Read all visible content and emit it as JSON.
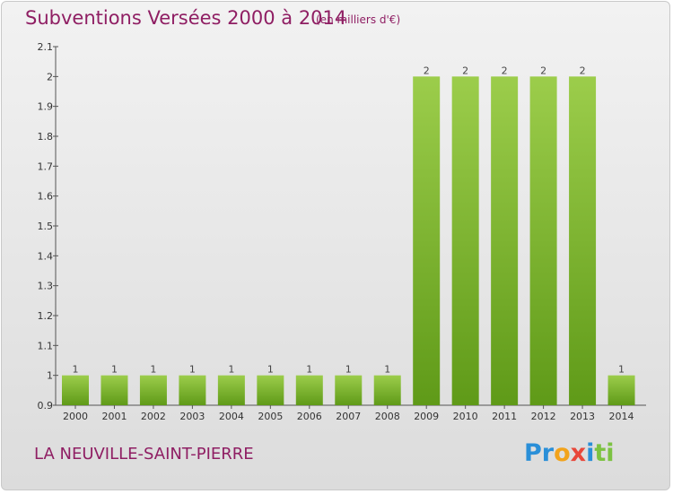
{
  "header": {
    "title": "Subventions Versées 2000 à 2014",
    "subtitle": "(en milliers d'€)"
  },
  "footer": {
    "place": "LA NEUVILLE-SAINT-PIERRE",
    "logo_parts": [
      "Pr",
      "o",
      "x",
      "i",
      "ti"
    ]
  },
  "colors": {
    "bar_top": "#9ccd4b",
    "bar_bottom": "#5f9a18",
    "title": "#8f1e63"
  },
  "chart_data": {
    "type": "bar",
    "title": "Subventions Versées 2000 à 2014",
    "subtitle": "(en milliers d'€)",
    "xlabel": "",
    "ylabel": "",
    "categories": [
      "2000",
      "2001",
      "2002",
      "2003",
      "2004",
      "2005",
      "2006",
      "2007",
      "2008",
      "2009",
      "2010",
      "2011",
      "2012",
      "2013",
      "2014"
    ],
    "values": [
      1,
      1,
      1,
      1,
      1,
      1,
      1,
      1,
      1,
      2,
      2,
      2,
      2,
      2,
      1
    ],
    "data_labels": [
      "1",
      "1",
      "1",
      "1",
      "1",
      "1",
      "1",
      "1",
      "1",
      "2",
      "2",
      "2",
      "2",
      "2",
      "1"
    ],
    "ylim": [
      0.9,
      2.1
    ],
    "yticks": [
      0.9,
      1,
      1.1,
      1.2,
      1.3,
      1.4,
      1.5,
      1.6,
      1.7,
      1.8,
      1.9,
      2,
      2.1
    ],
    "ytick_labels": [
      "0.9",
      "1",
      "1.1",
      "1.2",
      "1.3",
      "1.4",
      "1.5",
      "1.6",
      "1.7",
      "1.8",
      "1.9",
      "2",
      "2.1"
    ],
    "grid": false,
    "legend": "none"
  }
}
